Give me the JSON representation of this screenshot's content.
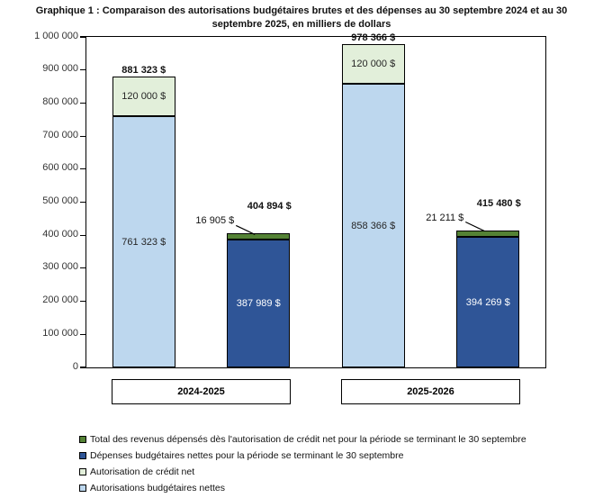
{
  "title": "Graphique 1 : Comparaison des autorisations budgétaires brutes et des dépenses au 30 septembre 2024 et au 30 septembre 2025, en milliers de dollars",
  "colors": {
    "light_blue": "#BDD7EE",
    "pale_green": "#E2EFDA",
    "dark_blue": "#2F5597",
    "green": "#548235",
    "axis": "#000000"
  },
  "chart_data": {
    "type": "bar",
    "stacked": true,
    "title": "Graphique 1 : Comparaison des autorisations budgétaires brutes et des dépenses au 30 septembre 2024 et au 30 septembre 2025, en milliers de dollars",
    "unit": "milliers de dollars",
    "ylim": [
      0,
      1000000
    ],
    "ytick_step": 100000,
    "yticks": [
      "0",
      "100 000",
      "200 000",
      "300 000",
      "400 000",
      "500 000",
      "600 000",
      "700 000",
      "800 000",
      "900 000",
      "1 000 000"
    ],
    "grid": false,
    "legend_position": "bottom-left",
    "categories": [
      "2024-2025",
      "2025-2026"
    ],
    "legend": [
      {
        "color_key": "green",
        "label": "Total des revenus dépensés dès l'autorisation de crédit net pour la période se terminant le 30 septembre"
      },
      {
        "color_key": "dark_blue",
        "label": "Dépenses budgétaires nettes pour la période se terminant le 30 septembre"
      },
      {
        "color_key": "pale_green",
        "label": "Autorisation de crédit net"
      },
      {
        "color_key": "light_blue",
        "label": "Autorisations budgétaires nettes"
      }
    ],
    "bars": [
      {
        "group": "2024-2025",
        "total": 881323,
        "total_label": "881 323 $",
        "total_label_position": "above",
        "segments": [
          {
            "series": "Autorisations budgétaires nettes",
            "color_key": "light_blue",
            "value": 761323,
            "label": "761 323 $",
            "label_style": "dark"
          },
          {
            "series": "Autorisation de crédit net",
            "color_key": "pale_green",
            "value": 120000,
            "label": "120 000 $",
            "label_style": "dark"
          }
        ]
      },
      {
        "group": "2024-2025",
        "total": 404894,
        "total_label": "404 894 $",
        "total_label_position": "above-raised",
        "segments": [
          {
            "series": "Dépenses budgétaires nettes pour la période se terminant le 30 septembre",
            "color_key": "dark_blue",
            "value": 387989,
            "label": "387 989 $",
            "label_style": "light"
          },
          {
            "series": "Total des revenus dépensés dès l'autorisation de crédit net pour la période se terminant le 30 septembre",
            "color_key": "green",
            "value": 16905,
            "label": "16 905 $",
            "label_style": "callout"
          }
        ]
      },
      {
        "group": "2025-2026",
        "total": 978366,
        "total_label": "978 366 $",
        "total_label_position": "above",
        "segments": [
          {
            "series": "Autorisations budgétaires nettes",
            "color_key": "light_blue",
            "value": 858366,
            "label": "858 366 $",
            "label_style": "dark"
          },
          {
            "series": "Autorisation de crédit net",
            "color_key": "pale_green",
            "value": 120000,
            "label": "120 000 $",
            "label_style": "dark"
          }
        ]
      },
      {
        "group": "2025-2026",
        "total": 415480,
        "total_label": "415 480 $",
        "total_label_position": "above-raised",
        "segments": [
          {
            "series": "Dépenses budgétaires nettes pour la période se terminant le 30 septembre",
            "color_key": "dark_blue",
            "value": 394269,
            "label": "394 269 $",
            "label_style": "light"
          },
          {
            "series": "Total des revenus dépensés dès l'autorisation de crédit net pour la période se terminant le 30 septembre",
            "color_key": "green",
            "value": 21211,
            "label": "21 211 $",
            "label_style": "callout"
          }
        ]
      }
    ]
  }
}
